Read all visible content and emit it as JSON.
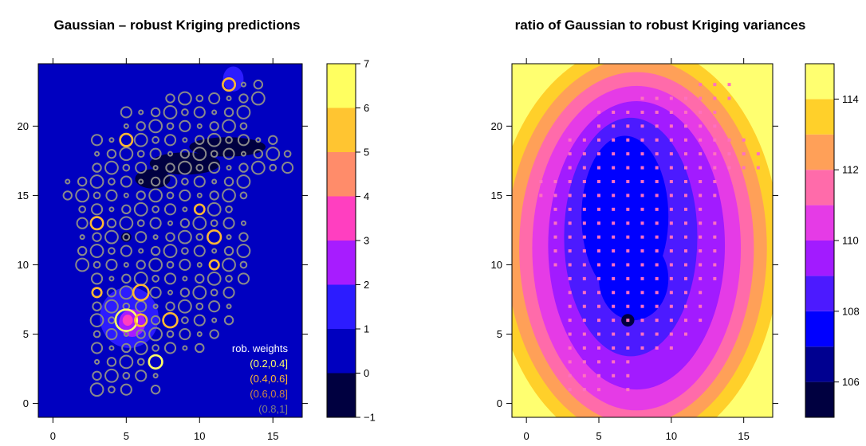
{
  "chart_data": [
    {
      "type": "heatmap",
      "title": "Gaussian – robust Kriging predictions",
      "xlabel": "",
      "ylabel": "",
      "xlim": [
        -1,
        17
      ],
      "ylim": [
        -1,
        24.5
      ],
      "xticks": [
        0,
        5,
        10,
        15
      ],
      "yticks": [
        0,
        5,
        10,
        15,
        20
      ],
      "grid": false,
      "background_color": "#0000C0",
      "colorbar": {
        "breaks": [
          -1,
          0,
          1,
          2,
          3,
          4,
          5,
          6,
          7
        ],
        "tick_labels": [
          "−1",
          "0",
          "1",
          "2",
          "3",
          "4",
          "5",
          "6",
          "7"
        ],
        "colors": [
          "#000040",
          "#0000C0",
          "#2C1CFF",
          "#A71CFF",
          "#FF3FC0",
          "#FF8C6A",
          "#FFC531",
          "#FFFF60"
        ]
      },
      "hotspots": [
        {
          "x": 5.2,
          "y": 6.2,
          "rx": 2.0,
          "ry": 2.2,
          "color": "#2C1CFF"
        },
        {
          "x": 5.4,
          "y": 5.8,
          "rx": 0.9,
          "ry": 1.0,
          "color": "#A71CFF"
        },
        {
          "x": 5.1,
          "y": 6.0,
          "rx": 0.35,
          "ry": 0.4,
          "color": "#FF3FC0"
        },
        {
          "x": 12.3,
          "y": 23.4,
          "rx": 0.7,
          "ry": 0.9,
          "color": "#2C1CFF"
        },
        {
          "x": 11.9,
          "y": 18.5,
          "rx": 2.6,
          "ry": 0.7,
          "color": "#000040"
        },
        {
          "x": 9.0,
          "y": 17.3,
          "rx": 2.4,
          "ry": 0.8,
          "color": "#000040"
        },
        {
          "x": 6.8,
          "y": 16.2,
          "rx": 1.2,
          "ry": 0.7,
          "color": "#000040"
        },
        {
          "x": 5.0,
          "y": 12.0,
          "rx": 0.35,
          "ry": 0.35,
          "color": "#000040"
        }
      ],
      "legend": {
        "title": "rob. weights",
        "position": "bottom-right",
        "entries": [
          {
            "label": "(0.2,0.4]",
            "color": "#FFFF66"
          },
          {
            "label": "(0.4,0.6]",
            "color": "#FFB833"
          },
          {
            "label": "(0.6,0.8]",
            "color": "#CC8844"
          },
          {
            "label": "(0.8,1]",
            "color": "#808080"
          }
        ]
      },
      "station_grid": {
        "x": [
          1,
          2,
          3,
          4,
          5,
          6,
          7,
          8,
          9,
          10,
          11,
          12,
          13,
          14,
          15,
          16
        ],
        "y": [
          1,
          2,
          3,
          4,
          5,
          6,
          7,
          8,
          9,
          10,
          11,
          12,
          13,
          14,
          15,
          16,
          17,
          18,
          19,
          20,
          21,
          22,
          23
        ],
        "rows": [
          "..aaa.a.........",
          "..aaaaa.........",
          "..aaaab.........",
          "..aaaaaaaa......",
          "..aaaaaaaaa.....",
          "..aaaaaaaaaa....",
          "..aaaaaaaaaa....",
          "..aaaaaaaaaa....",
          "..aaaaaaaaaaa...",
          ".aaaaaaaaaaaa...",
          ".aaaaaaaaaaaa...",
          ".aaaaaaaaaaaa...",
          ".aaaaaaaaaaaa...",
          ".aaaaaaaaaaa....",
          "aaaaaaaaaaaaa...",
          "aaaaaaaaaaaaa...",
          "..aaaaaaaaaaaaaa",
          "..aaaaaaaaaaaaaa",
          "..aaaaaaaaaaaaa.",
          "....aaaaaaaaa...",
          "....aaaaaaaaa...",
          ".......aaaaaaa..",
          "...........bbb.."
        ]
      },
      "points": [
        {
          "x": 5,
          "y": 6,
          "w": 0.3,
          "r": 4.2
        },
        {
          "x": 7,
          "y": 3,
          "w": 0.3,
          "r": 2.6
        },
        {
          "x": 12,
          "y": 23,
          "w": 0.5,
          "r": 2.4
        },
        {
          "x": 5,
          "y": 19,
          "w": 0.5,
          "r": 2.4
        },
        {
          "x": 3,
          "y": 13,
          "w": 0.5,
          "r": 2.4
        },
        {
          "x": 11,
          "y": 12,
          "w": 0.5,
          "r": 2.6
        },
        {
          "x": 6,
          "y": 8,
          "w": 0.5,
          "r": 3.0
        },
        {
          "x": 8,
          "y": 6,
          "w": 0.5,
          "r": 2.8
        },
        {
          "x": 3,
          "y": 8,
          "w": 0.6,
          "r": 1.8
        },
        {
          "x": 10,
          "y": 14,
          "w": 0.6,
          "r": 1.9
        },
        {
          "x": 11,
          "y": 10,
          "w": 0.6,
          "r": 1.8
        },
        {
          "x": 6,
          "y": 6,
          "w": 0.6,
          "r": 2.3
        }
      ]
    },
    {
      "type": "heatmap",
      "title": "ratio of Gaussian to robust Kriging variances",
      "xlabel": "",
      "ylabel": "",
      "xlim": [
        -1,
        17
      ],
      "ylim": [
        -1,
        24.5
      ],
      "xticks": [
        0,
        5,
        10,
        15
      ],
      "yticks": [
        0,
        5,
        10,
        15,
        20
      ],
      "grid": false,
      "colorbar": {
        "breaks": [
          105,
          106,
          107,
          108,
          109,
          110,
          111,
          112,
          113,
          114,
          115
        ],
        "tick_labels": [
          "106",
          "108",
          "110",
          "112",
          "114"
        ],
        "tick_values": [
          106,
          108,
          110,
          112,
          114
        ],
        "colors": [
          "#000040",
          "#000090",
          "#0000FF",
          "#4C1AFF",
          "#A21BFF",
          "#E53BE6",
          "#FF6BAA",
          "#FFA058",
          "#FFD02A",
          "#FFFF70"
        ]
      },
      "contour_bands": [
        {
          "cx": 7.6,
          "cy": 11.2,
          "rx": 10.8,
          "ry": 15.8,
          "color": "#FFFF70"
        },
        {
          "cx": 7.6,
          "cy": 11.2,
          "rx": 9.9,
          "ry": 14.7,
          "color": "#FFD02A"
        },
        {
          "cx": 7.6,
          "cy": 11.2,
          "rx": 9.0,
          "ry": 13.7,
          "color": "#FFA058"
        },
        {
          "cx": 7.6,
          "cy": 11.2,
          "rx": 8.1,
          "ry": 12.7,
          "color": "#FF6BAA"
        },
        {
          "cx": 7.6,
          "cy": 11.2,
          "rx": 7.2,
          "ry": 11.7,
          "color": "#E53BE6"
        },
        {
          "cx": 7.6,
          "cy": 11.4,
          "rx": 6.1,
          "ry": 10.4,
          "color": "#A21BFF"
        }
      ],
      "inner_regions": [
        {
          "cx": 7.2,
          "cy": 12.0,
          "rx": 4.6,
          "ry": 8.6,
          "color": "#4C1AFF"
        },
        {
          "cx": 6.8,
          "cy": 13.5,
          "rx": 3.0,
          "ry": 5.8,
          "color": "#0000FF"
        },
        {
          "cx": 7.4,
          "cy": 9.0,
          "rx": 2.4,
          "ry": 3.0,
          "color": "#0000FF"
        },
        {
          "cx": 7.0,
          "cy": 6.0,
          "rx": 0.45,
          "ry": 0.45,
          "color": "#000040"
        }
      ],
      "station_marks": {
        "color": "#FF70C0",
        "size": 0.22
      }
    }
  ]
}
